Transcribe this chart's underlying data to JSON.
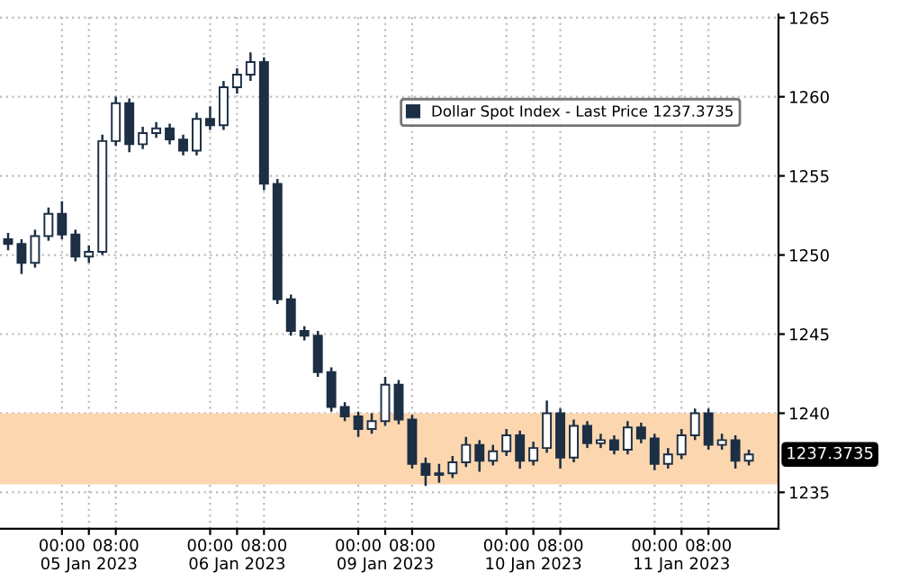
{
  "chart_data": {
    "type": "candlestick",
    "categories": [
      null,
      null,
      null,
      null,
      "00:00",
      null,
      "\n05 Jan 2023",
      null,
      "08:00",
      null,
      null,
      null,
      null,
      null,
      null,
      "00:00",
      null,
      "\n06 Jan 2023",
      null,
      "08:00",
      null,
      null,
      null,
      null,
      null,
      null,
      "00:00",
      null,
      "\n09 Jan 2023",
      null,
      "08:00",
      null,
      null,
      null,
      null,
      null,
      null,
      "00:00",
      null,
      "\n10 Jan 2023",
      null,
      "08:00",
      null,
      null,
      null,
      null,
      null,
      null,
      "00:00",
      null,
      "\n11 Jan 2023",
      null,
      "08:00",
      null,
      null,
      null
    ],
    "series": [
      {
        "name": "Dollar Spot Index - Last Price 1237.3735",
        "color": "#1c2f45",
        "ohlc": [
          [
            1251.0,
            1251.4,
            1250.3,
            1250.7
          ],
          [
            1250.7,
            1251.0,
            1248.8,
            1249.5
          ],
          [
            1249.5,
            1251.6,
            1249.2,
            1251.2
          ],
          [
            1251.2,
            1253.0,
            1250.9,
            1252.6
          ],
          [
            1252.6,
            1253.4,
            1251.0,
            1251.3
          ],
          [
            1251.3,
            1251.6,
            1249.6,
            1249.9
          ],
          [
            1249.9,
            1250.6,
            1249.5,
            1250.2
          ],
          [
            1250.2,
            1257.6,
            1250.0,
            1257.2
          ],
          [
            1257.2,
            1260.0,
            1256.9,
            1259.6
          ],
          [
            1259.6,
            1259.9,
            1256.5,
            1257.0
          ],
          [
            1257.0,
            1258.1,
            1256.7,
            1257.7
          ],
          [
            1257.7,
            1258.4,
            1257.4,
            1258.0
          ],
          [
            1258.0,
            1258.3,
            1257.0,
            1257.3
          ],
          [
            1257.3,
            1257.6,
            1256.3,
            1256.6
          ],
          [
            1256.6,
            1259.0,
            1256.3,
            1258.6
          ],
          [
            1258.6,
            1259.4,
            1257.9,
            1258.2
          ],
          [
            1258.2,
            1261.0,
            1257.9,
            1260.6
          ],
          [
            1260.6,
            1261.8,
            1260.2,
            1261.4
          ],
          [
            1261.4,
            1262.8,
            1261.0,
            1262.2
          ],
          [
            1262.2,
            1262.5,
            1254.1,
            1254.5
          ],
          [
            1254.5,
            1254.8,
            1246.9,
            1247.2
          ],
          [
            1247.2,
            1247.5,
            1244.9,
            1245.2
          ],
          [
            1245.2,
            1245.5,
            1244.6,
            1244.9
          ],
          [
            1244.9,
            1245.2,
            1242.3,
            1242.6
          ],
          [
            1242.6,
            1242.9,
            1240.1,
            1240.4
          ],
          [
            1240.4,
            1240.7,
            1239.5,
            1239.8
          ],
          [
            1239.8,
            1240.1,
            1238.5,
            1239.0
          ],
          [
            1239.0,
            1240.0,
            1238.7,
            1239.5
          ],
          [
            1239.5,
            1242.3,
            1239.2,
            1241.8
          ],
          [
            1241.8,
            1242.1,
            1239.3,
            1239.6
          ],
          [
            1239.6,
            1239.9,
            1236.5,
            1236.8
          ],
          [
            1236.8,
            1237.2,
            1235.4,
            1236.1
          ],
          [
            1236.1,
            1236.8,
            1235.6,
            1236.2
          ],
          [
            1236.2,
            1237.3,
            1235.9,
            1236.9
          ],
          [
            1236.9,
            1238.5,
            1236.6,
            1238.0
          ],
          [
            1238.0,
            1238.3,
            1236.3,
            1237.0
          ],
          [
            1237.0,
            1238.0,
            1236.7,
            1237.6
          ],
          [
            1237.6,
            1239.0,
            1237.3,
            1238.6
          ],
          [
            1238.6,
            1238.9,
            1236.5,
            1237.0
          ],
          [
            1237.0,
            1238.2,
            1236.7,
            1237.8
          ],
          [
            1237.8,
            1240.8,
            1237.5,
            1240.0
          ],
          [
            1240.0,
            1240.3,
            1236.5,
            1237.2
          ],
          [
            1237.2,
            1239.6,
            1236.9,
            1239.2
          ],
          [
            1239.2,
            1239.5,
            1237.8,
            1238.1
          ],
          [
            1238.1,
            1238.7,
            1237.8,
            1238.3
          ],
          [
            1238.3,
            1238.6,
            1237.4,
            1237.7
          ],
          [
            1237.7,
            1239.5,
            1237.4,
            1239.1
          ],
          [
            1239.1,
            1239.4,
            1238.1,
            1238.4
          ],
          [
            1238.4,
            1238.7,
            1236.4,
            1236.8
          ],
          [
            1236.8,
            1237.8,
            1236.5,
            1237.4
          ],
          [
            1237.4,
            1239.0,
            1237.1,
            1238.6
          ],
          [
            1238.6,
            1240.3,
            1238.3,
            1240.0
          ],
          [
            1240.0,
            1240.3,
            1237.7,
            1238.0
          ],
          [
            1238.0,
            1238.7,
            1237.7,
            1238.3
          ],
          [
            1238.3,
            1238.6,
            1236.5,
            1237.0
          ],
          [
            1237.0,
            1237.7,
            1236.7,
            1237.4
          ]
        ]
      }
    ],
    "ylim": [
      1232.7,
      1265.2
    ],
    "yticks": [
      1235,
      1240,
      1245,
      1250,
      1255,
      1260,
      1265
    ],
    "bands": [
      {
        "axis": "y",
        "from": 1235.5,
        "to": 1240,
        "color": "#fcd6ae"
      }
    ],
    "annotations": [
      "1237.3735"
    ],
    "grid": true,
    "legend": "top right"
  }
}
